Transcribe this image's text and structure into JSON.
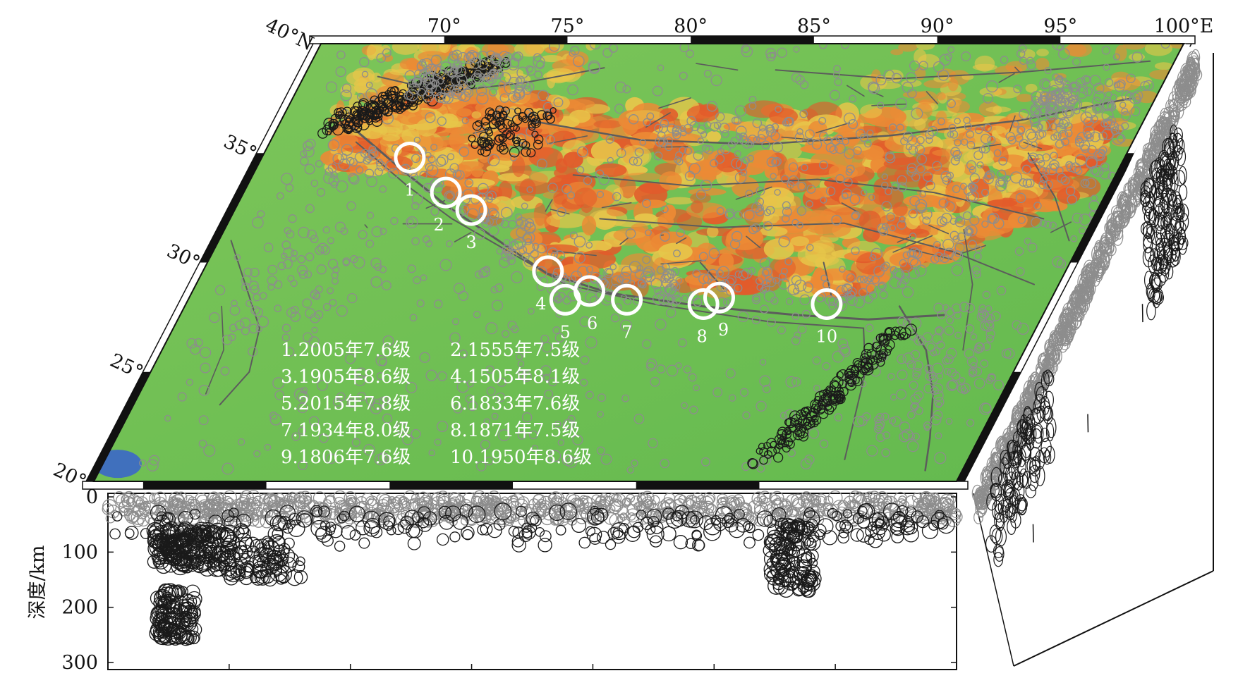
{
  "map": {
    "lon_labels": [
      {
        "text": "70°",
        "lon": 70
      },
      {
        "text": "75°",
        "lon": 75
      },
      {
        "text": "80°",
        "lon": 80
      },
      {
        "text": "85°",
        "lon": 85
      },
      {
        "text": "90°",
        "lon": 90
      },
      {
        "text": "95°",
        "lon": 95
      },
      {
        "text": "100°E",
        "lon": 100
      }
    ],
    "lat_labels": [
      {
        "text": "40°N",
        "lat": 40
      },
      {
        "text": "35°",
        "lat": 35
      },
      {
        "text": "30°",
        "lat": 30
      },
      {
        "text": "25°",
        "lat": 25
      },
      {
        "text": "20°",
        "lat": 20
      }
    ],
    "lon_range": [
      65,
      100
    ],
    "lat_range": [
      20,
      40
    ],
    "colors": {
      "lowland": "#6abf4f",
      "midland": "#e7c64a",
      "highland": "#ec8a35",
      "peak": "#e25b2b",
      "ocean": "#3b67c9",
      "fault": "#5c5c5c",
      "event_dark": "#1a1a1a",
      "event_gray": "#8d8d8d"
    }
  },
  "earthquakes": [
    {
      "num": "1",
      "lon": 71.0,
      "lat": 34.8
    },
    {
      "num": "2",
      "lon": 73.2,
      "lat": 33.2
    },
    {
      "num": "3",
      "lon": 74.6,
      "lat": 32.4
    },
    {
      "num": "4",
      "lon": 79.0,
      "lat": 29.6
    },
    {
      "num": "5",
      "lon": 80.3,
      "lat": 28.3
    },
    {
      "num": "6",
      "lon": 81.1,
      "lat": 28.7
    },
    {
      "num": "7",
      "lon": 82.8,
      "lat": 28.3
    },
    {
      "num": "8",
      "lon": 86.0,
      "lat": 28.1
    },
    {
      "num": "9",
      "lon": 86.5,
      "lat": 28.4
    },
    {
      "num": "10",
      "lon": 91.0,
      "lat": 28.1
    }
  ],
  "legend": [
    "1.2005年7.6级",
    "2.1555年7.5级",
    "3.1905年8.6级",
    "4.1505年8.1级",
    "5.2015年7.8级",
    "6.1833年7.6级",
    "7.1934年8.0级",
    "8.1871年7.5级",
    "9.1806年7.6级",
    "10.1950年8.6级"
  ],
  "depth_profile": {
    "ylabel": "深度/km",
    "tick_labels": [
      "0",
      "100",
      "200",
      "300"
    ],
    "ticks": [
      0,
      100,
      200,
      300
    ],
    "range": [
      0,
      300
    ]
  }
}
